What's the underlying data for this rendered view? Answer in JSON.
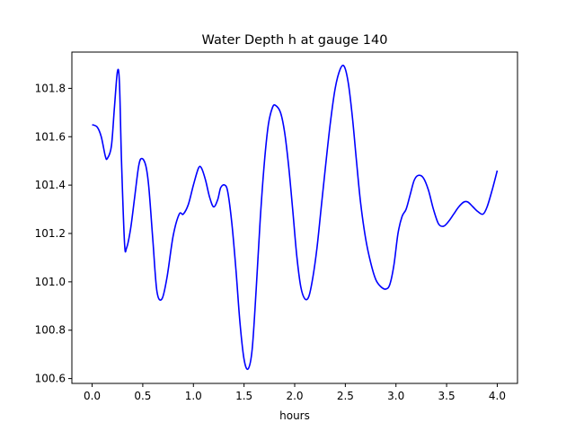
{
  "chart_data": {
    "type": "line",
    "title": "Water Depth h at gauge 140",
    "xlabel": "hours",
    "ylabel": "",
    "xlim": [
      -0.2,
      4.2
    ],
    "ylim": [
      100.58,
      101.95
    ],
    "xticks": [
      0.0,
      0.5,
      1.0,
      1.5,
      2.0,
      2.5,
      3.0,
      3.5,
      4.0
    ],
    "xtick_labels": [
      "0.0",
      "0.5",
      "1.0",
      "1.5",
      "2.0",
      "2.5",
      "3.0",
      "3.5",
      "4.0"
    ],
    "yticks": [
      100.6,
      100.8,
      101.0,
      101.2,
      101.4,
      101.6,
      101.8
    ],
    "ytick_labels": [
      "100.6",
      "100.8",
      "101.0",
      "101.2",
      "101.4",
      "101.6",
      "101.8"
    ],
    "grid": false,
    "line_color": "#0000ff",
    "series": [
      {
        "name": "",
        "x": [
          0.0,
          0.05,
          0.09,
          0.13,
          0.15,
          0.19,
          0.22,
          0.25,
          0.27,
          0.29,
          0.32,
          0.34,
          0.38,
          0.42,
          0.46,
          0.49,
          0.53,
          0.56,
          0.6,
          0.64,
          0.69,
          0.74,
          0.8,
          0.86,
          0.9,
          0.95,
          1.0,
          1.05,
          1.08,
          1.12,
          1.16,
          1.2,
          1.24,
          1.27,
          1.31,
          1.34,
          1.38,
          1.42,
          1.46,
          1.5,
          1.54,
          1.58,
          1.62,
          1.66,
          1.7,
          1.74,
          1.78,
          1.81,
          1.86,
          1.9,
          1.94,
          1.98,
          2.02,
          2.06,
          2.1,
          2.14,
          2.18,
          2.22,
          2.26,
          2.3,
          2.35,
          2.4,
          2.45,
          2.49,
          2.53,
          2.57,
          2.61,
          2.65,
          2.7,
          2.75,
          2.8,
          2.85,
          2.9,
          2.94,
          2.98,
          3.02,
          3.06,
          3.1,
          3.14,
          3.18,
          3.22,
          3.27,
          3.32,
          3.37,
          3.42,
          3.47,
          3.52,
          3.57,
          3.62,
          3.67,
          3.71,
          3.76,
          3.81,
          3.86,
          3.9,
          3.95,
          4.0
        ],
        "y": [
          101.65,
          101.64,
          101.6,
          101.52,
          101.51,
          101.56,
          101.72,
          101.87,
          101.82,
          101.5,
          101.16,
          101.14,
          101.22,
          101.35,
          101.48,
          101.51,
          101.48,
          101.39,
          101.17,
          100.96,
          100.93,
          101.02,
          101.19,
          101.28,
          101.28,
          101.32,
          101.4,
          101.47,
          101.47,
          101.42,
          101.35,
          101.31,
          101.34,
          101.39,
          101.4,
          101.37,
          101.24,
          101.05,
          100.83,
          100.68,
          100.64,
          100.72,
          100.97,
          101.26,
          101.49,
          101.65,
          101.72,
          101.73,
          101.7,
          101.62,
          101.48,
          101.3,
          101.11,
          100.98,
          100.93,
          100.94,
          101.02,
          101.14,
          101.3,
          101.46,
          101.65,
          101.8,
          101.88,
          101.89,
          101.82,
          101.68,
          101.5,
          101.33,
          101.18,
          101.08,
          101.01,
          100.98,
          100.97,
          100.99,
          101.07,
          101.2,
          101.27,
          101.3,
          101.36,
          101.42,
          101.44,
          101.43,
          101.38,
          101.3,
          101.24,
          101.23,
          101.25,
          101.28,
          101.31,
          101.33,
          101.33,
          101.31,
          101.29,
          101.28,
          101.31,
          101.38,
          101.46
        ]
      }
    ]
  }
}
